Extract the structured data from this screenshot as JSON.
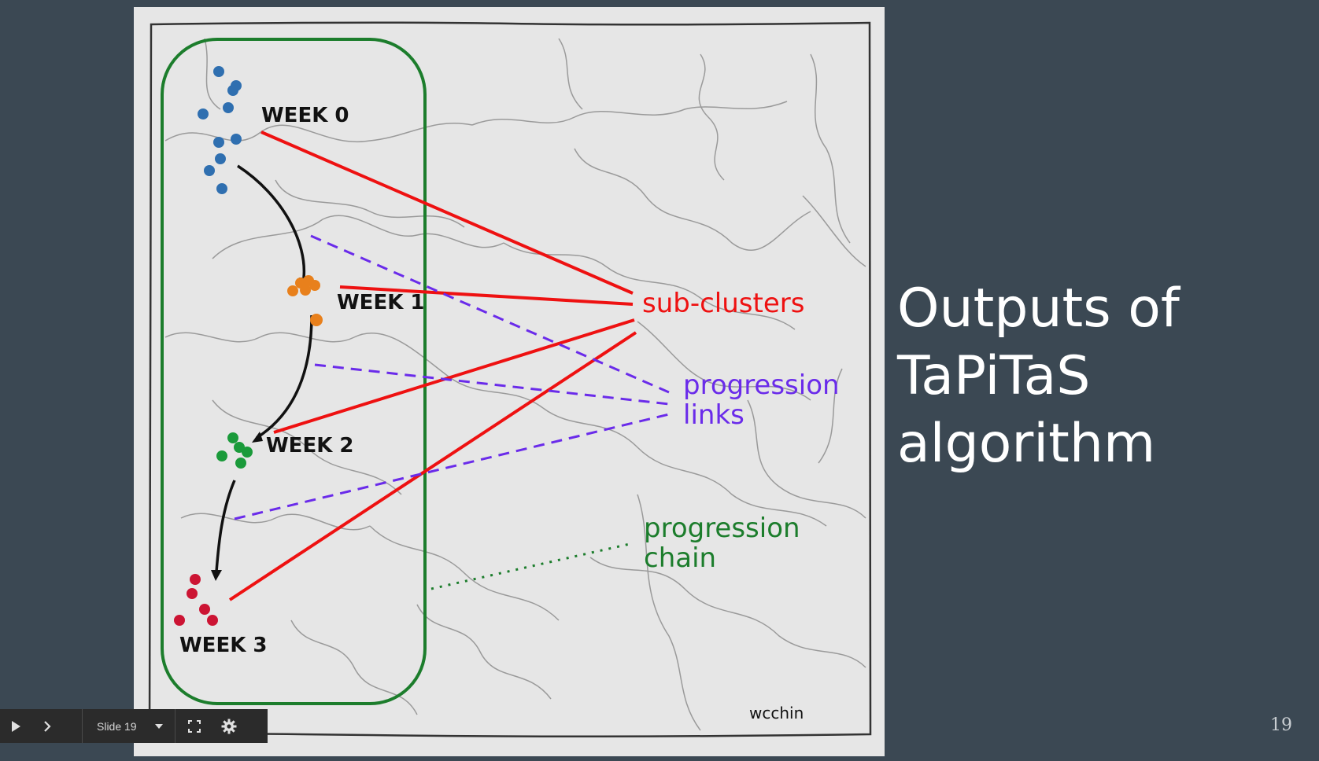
{
  "slide": {
    "title_lines": [
      "Outputs of",
      "TaPiTaS",
      "algorithm"
    ],
    "page_number": "19"
  },
  "figure": {
    "week_labels": [
      "WEEK 0",
      "WEEK 1",
      "WEEK 2",
      "WEEK 3"
    ],
    "annotations": {
      "sub_clusters": "sub-clusters",
      "progression_links_line1": "progression",
      "progression_links_line2": "links",
      "progression_chain_line1": "progression",
      "progression_chain_line2": "chain"
    },
    "credit": "wcchin",
    "colors": {
      "week0": "#2f6fb0",
      "week1": "#e8801c",
      "week2": "#1a9a3a",
      "week3": "#cc1433",
      "sub_clusters": "#ee1111",
      "progression_links": "#6a2bea",
      "progression_chain": "#1c7d2c"
    }
  },
  "toolbar": {
    "play_icon": "play-icon",
    "next_icon": "chevron-right-icon",
    "slide_label": "Slide 19",
    "dropdown_icon": "caret-down-icon",
    "fullscreen_icon": "fullscreen-icon",
    "settings_icon": "gear-icon"
  }
}
